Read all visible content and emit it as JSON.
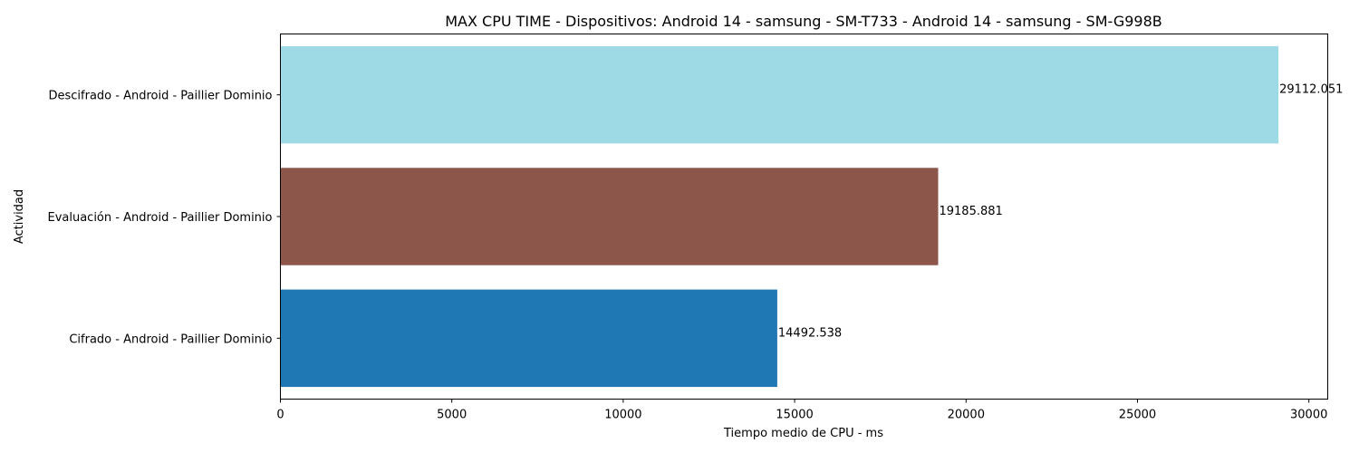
{
  "chart_data": {
    "type": "bar",
    "orientation": "horizontal",
    "title": "MAX CPU TIME - Dispositivos: Android 14 - samsung - SM-T733 - Android 14 - samsung - SM-G998B",
    "xlabel": "Tiempo medio de CPU - ms",
    "ylabel": "Actividad",
    "xlim": [
      0,
      30550
    ],
    "xticks": [
      0,
      5000,
      10000,
      15000,
      20000,
      25000,
      30000
    ],
    "xtick_labels": [
      "0",
      "5000",
      "10000",
      "15000",
      "20000",
      "25000",
      "30000"
    ],
    "categories": [
      "Cifrado - Android - Paillier Dominio",
      "Evaluación - Android - Paillier Dominio",
      "Descifrado - Android - Paillier Dominio"
    ],
    "values": [
      14492.538,
      19185.881,
      29112.051
    ],
    "value_labels": [
      "14492.538",
      "19185.881",
      "29112.051"
    ],
    "bar_colors": [
      "#1f77b4",
      "#8c564b",
      "#9edae5"
    ],
    "grid": false,
    "legend": "none"
  }
}
